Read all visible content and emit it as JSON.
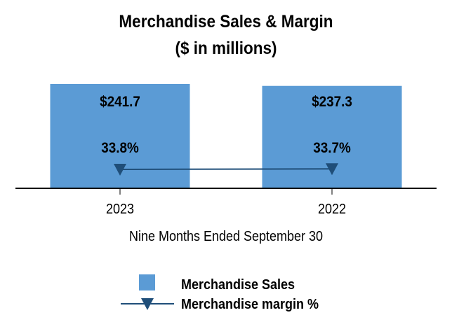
{
  "chart_data": {
    "type": "bar",
    "title": "Merchandise Sales & Margin",
    "subtitle": "($ in millions)",
    "xlabel": "Nine Months Ended September 30",
    "categories": [
      "2023",
      "2022"
    ],
    "series": [
      {
        "name": "Merchandise Sales",
        "type": "bar",
        "values": [
          241.7,
          237.3
        ],
        "labels": [
          "$241.7",
          "$237.3"
        ],
        "color": "#5b9bd5"
      },
      {
        "name": "Merchandise margin %",
        "type": "line",
        "values": [
          33.8,
          33.7
        ],
        "labels": [
          "33.8%",
          "33.7%"
        ],
        "color": "#1f4e79",
        "marker": "triangle-down"
      }
    ],
    "legend": "bottom-center"
  }
}
